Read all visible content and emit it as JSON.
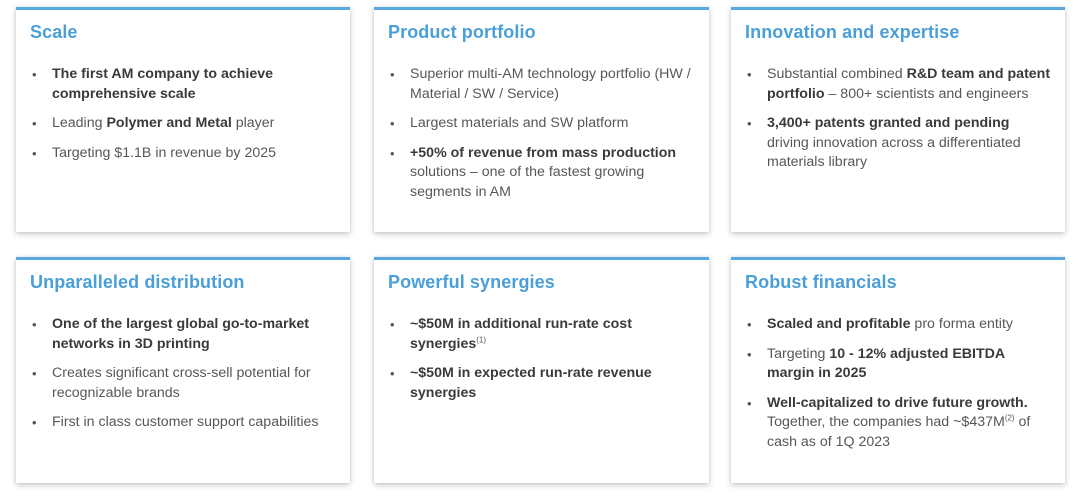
{
  "colors": {
    "accent": "#4a9fd8",
    "text": "#575757",
    "bold_text": "#3a3a3a"
  },
  "bullet_glyph": "•",
  "cards": [
    {
      "title": "Scale",
      "items": [
        {
          "b1": "The first AM company to achieve comprehensive scale"
        },
        {
          "t1": "Leading ",
          "b1": "Polymer and Metal",
          "t2": " player"
        },
        {
          "t1": "Targeting $1.1B in revenue by 2025"
        }
      ]
    },
    {
      "title": "Product portfolio",
      "items": [
        {
          "t1": "Superior multi-AM technology portfolio (HW / Material / SW / Service)"
        },
        {
          "t1": "Largest materials and SW platform"
        },
        {
          "b1": "+50% of revenue from mass production",
          "t2": " solutions – one of the fastest growing segments in AM"
        }
      ]
    },
    {
      "title": "Innovation and expertise",
      "items": [
        {
          "t1": "Substantial combined ",
          "b1": "R&D team and patent portfolio",
          "t2": " – 800+ scientists and engineers"
        },
        {
          "b1": "3,400+ patents granted and pending",
          "t2": " driving innovation across a differentiated materials library"
        }
      ]
    },
    {
      "title": "Unparalleled distribution",
      "items": [
        {
          "b1": "One of the largest global go-to-market networks in 3D printing"
        },
        {
          "t1": "Creates significant cross-sell potential for recognizable brands"
        },
        {
          "t1": "First in class customer support capabilities"
        }
      ]
    },
    {
      "title": "Powerful synergies",
      "items": [
        {
          "b1": "~$50M in additional run-rate cost synergies",
          "sup1": "(1)"
        },
        {
          "b1": "~$50M in expected run-rate revenue synergies"
        }
      ]
    },
    {
      "title": "Robust financials",
      "items": [
        {
          "b1": "Scaled and profitable",
          "t2": " pro forma entity"
        },
        {
          "t1": "Targeting ",
          "b1": "10 - 12% adjusted EBITDA margin in 2025"
        },
        {
          "b1": "Well-capitalized to drive future growth.",
          "t2": " Together, the companies had ~$437M",
          "sup2": "(2)",
          "t3": " of cash as of 1Q 2023"
        }
      ]
    }
  ]
}
